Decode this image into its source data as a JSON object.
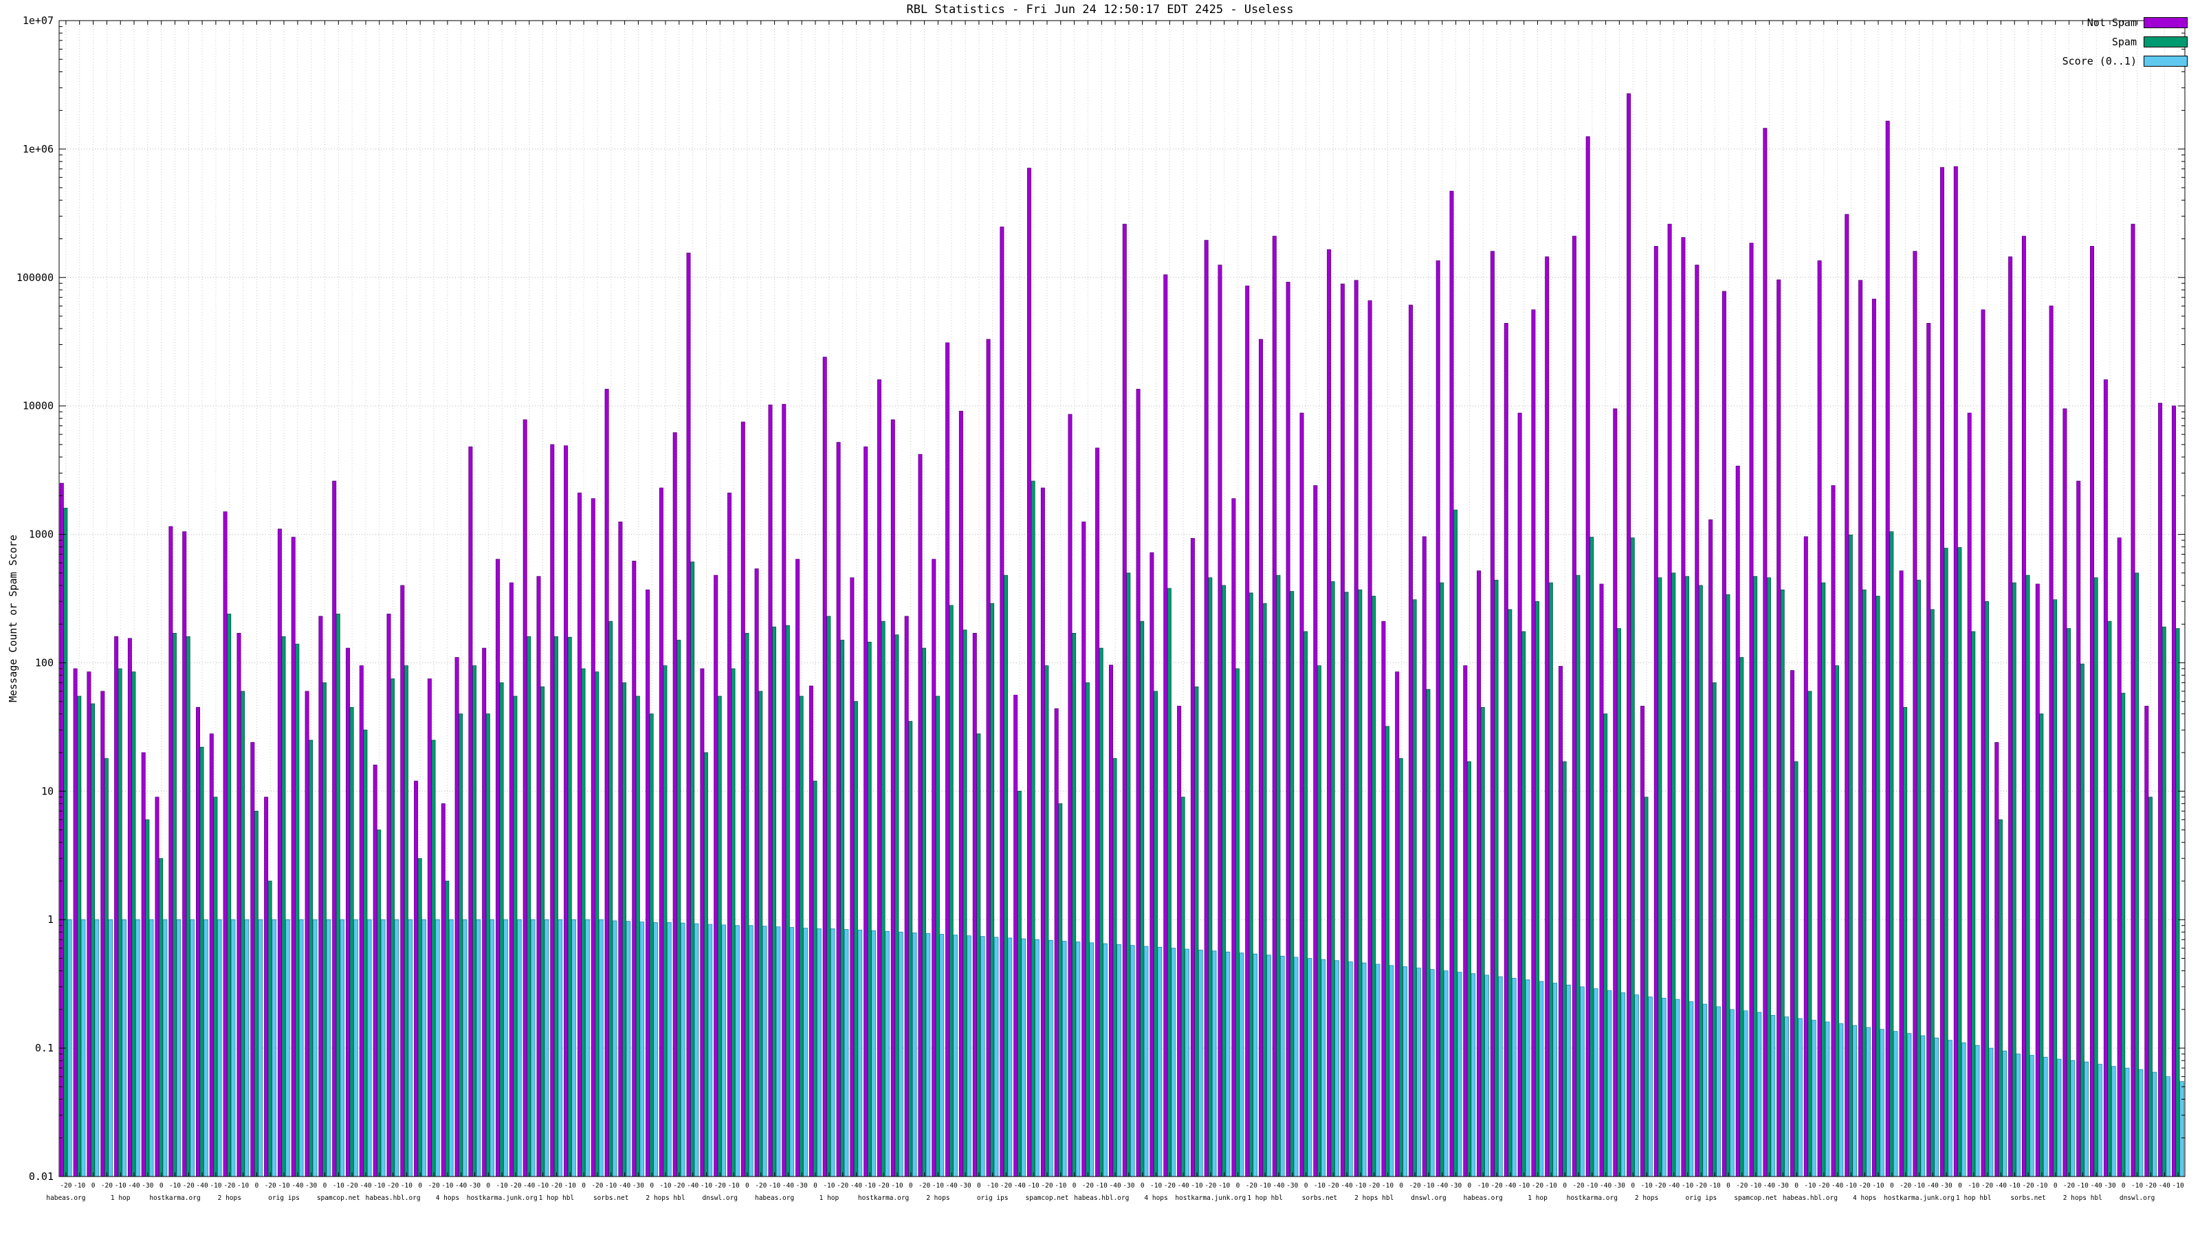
{
  "title": "RBL Statistics - Fri Jun 24 12:50:17 EDT 2425 - Useless",
  "legend": [
    {
      "label": "Not Spam",
      "color": "#a100d4"
    },
    {
      "label": "Spam",
      "color": "#009a70"
    },
    {
      "label": "Score (0..1)",
      "color": "#5fc8ee"
    }
  ],
  "y_axis": {
    "label": "Message Count or Spam Score",
    "scale": "log",
    "min": 0.01,
    "max": 10000000,
    "ticks": [
      "0.01",
      "0.1",
      "1",
      "10",
      "100",
      "1000",
      "10000",
      "100000",
      "1e+06",
      "1e+07"
    ]
  },
  "chart_data": {
    "type": "bar",
    "title": "RBL Statistics - Fri Jun 24 12:50:17 EDT 2425 - Useless",
    "xlabel": "",
    "ylabel": "Message Count or Spam Score",
    "ylim": [
      0.01,
      10000000
    ],
    "yscale": "log",
    "grid": true,
    "legend_position": "top-right",
    "categories": [
      "-20",
      "-10",
      "0",
      "-20",
      "-10",
      "-40",
      "-30",
      "0",
      "-10",
      "-20",
      "-40",
      "-10",
      "-20",
      "-10",
      "0",
      "-20",
      "-10",
      "-40",
      "-30",
      "0",
      "-10",
      "-20",
      "-40",
      "-10",
      "-20",
      "-10",
      "0",
      "-20",
      "-10",
      "-40",
      "-30",
      "0",
      "-10",
      "-20",
      "-40",
      "-10",
      "-20",
      "-10",
      "0",
      "-20",
      "-10",
      "-40",
      "-30",
      "0",
      "-10",
      "-20",
      "-40",
      "-10",
      "-20",
      "-10",
      "0",
      "-20",
      "-10",
      "-40",
      "-30",
      "0",
      "-10",
      "-20",
      "-40",
      "-10",
      "-20",
      "-10",
      "0",
      "-20",
      "-10",
      "-40",
      "-30",
      "0",
      "-10",
      "-20",
      "-40",
      "-10",
      "-20",
      "-10",
      "0",
      "-20",
      "-10",
      "-40",
      "-30",
      "0",
      "-10",
      "-20",
      "-40",
      "-10",
      "-20",
      "-10",
      "0",
      "-20",
      "-10",
      "-40",
      "-30",
      "0",
      "-10",
      "-20",
      "-40",
      "-10",
      "-20",
      "-10",
      "0",
      "-20",
      "-10",
      "-40",
      "-30",
      "0",
      "-10",
      "-20",
      "-40",
      "-10",
      "-20",
      "-10",
      "0",
      "-20",
      "-10",
      "-40",
      "-30",
      "0",
      "-10",
      "-20",
      "-40",
      "-10",
      "-20",
      "-10",
      "0",
      "-20",
      "-10",
      "-40",
      "-30",
      "0",
      "-10",
      "-20",
      "-40",
      "-10",
      "-20",
      "-10",
      "0",
      "-20",
      "-10",
      "-40",
      "-30",
      "0",
      "-10",
      "-20",
      "-40",
      "-10",
      "-20",
      "-10",
      "0",
      "-20",
      "-10",
      "-40",
      "-30",
      "0",
      "-10",
      "-20",
      "-40",
      "-10"
    ],
    "x_group_labels": [
      "habeas.org",
      "1 hop",
      "hostkarma.org",
      "2 hops",
      "orig ips",
      "spamcop.net",
      "habeas.hbl.org",
      "4 hops",
      "hostkarma.junk.org",
      "1 hop hbl",
      "sorbs.net",
      "2 hops hbl",
      "dnswl.org",
      "habeas.org",
      "1 hop",
      "hostkarma.org",
      "2 hops",
      "orig ips",
      "spamcop.net",
      "habeas.hbl.org",
      "4 hops",
      "hostkarma.junk.org",
      "1 hop hbl",
      "sorbs.net",
      "2 hops hbl",
      "dnswl.org",
      "habeas.org",
      "1 hop",
      "hostkarma.org",
      "2 hops",
      "orig ips",
      "spamcop.net",
      "habeas.hbl.org",
      "4 hops",
      "hostkarma.junk.org",
      "1 hop hbl",
      "sorbs.net",
      "2 hops hbl",
      "dnswl.org"
    ],
    "series": [
      {
        "name": "Not Spam",
        "color": "#a100d4",
        "edge": "#5c0080",
        "values": [
          2500,
          90,
          85,
          60,
          160,
          155,
          20,
          9,
          1150,
          1050,
          45,
          28,
          1500,
          170,
          24,
          9,
          1100,
          950,
          60,
          230,
          2600,
          130,
          95,
          16,
          240,
          400,
          12,
          75,
          8,
          110,
          4800,
          130,
          640,
          420,
          7800,
          470,
          5000,
          4900,
          2100,
          1900,
          13500,
          1250,
          620,
          370,
          2300,
          6200,
          155000,
          90,
          480,
          2100,
          7500,
          540,
          10200,
          10300,
          640,
          66,
          24000,
          5200,
          460,
          4800,
          16000,
          7800,
          230,
          4200,
          640,
          31000,
          9100,
          170,
          33000,
          248000,
          56,
          710000,
          2300,
          44,
          8600,
          1250,
          4700,
          96,
          260000,
          13500,
          720,
          105000,
          46,
          930,
          195000,
          125000,
          1900,
          86000,
          33000,
          210000,
          92000,
          8800,
          2400,
          165000,
          89000,
          95000,
          66000,
          210,
          85,
          61000,
          960,
          135000,
          470000,
          95,
          520,
          160000,
          44000,
          8800,
          56000,
          145000,
          94,
          210000,
          1250000,
          410,
          9500,
          2700000,
          46,
          175000,
          260000,
          205000,
          125000,
          1300,
          78000,
          3400,
          185000,
          1450000,
          96000,
          87,
          960,
          135000,
          2400,
          310000,
          95000,
          68000,
          1650000,
          520,
          160000,
          44000,
          720000,
          730000,
          8800,
          56000,
          24,
          145000,
          210000,
          410,
          60000,
          9500,
          2600,
          175000,
          16000,
          940,
          260000,
          46,
          10500,
          10000
        ]
      },
      {
        "name": "Spam",
        "color": "#009a70",
        "edge": "#00543c",
        "values": [
          1600,
          55,
          48,
          18,
          90,
          85,
          6,
          3,
          170,
          160,
          22,
          9,
          240,
          60,
          7,
          2,
          160,
          140,
          25,
          70,
          240,
          45,
          30,
          5,
          75,
          95,
          3,
          25,
          2,
          40,
          95,
          40,
          70,
          55,
          160,
          65,
          160,
          158,
          90,
          85,
          210,
          70,
          55,
          40,
          95,
          150,
          610,
          20,
          55,
          90,
          170,
          60,
          190,
          195,
          55,
          12,
          230,
          150,
          50,
          145,
          210,
          165,
          35,
          130,
          55,
          280,
          180,
          28,
          290,
          480,
          10,
          2600,
          95,
          8,
          170,
          70,
          130,
          18,
          500,
          210,
          60,
          380,
          9,
          65,
          460,
          400,
          90,
          350,
          290,
          480,
          360,
          175,
          95,
          430,
          355,
          370,
          330,
          32,
          18,
          310,
          62,
          420,
          1550,
          17,
          45,
          440,
          260,
          175,
          300,
          420,
          17,
          480,
          950,
          40,
          185,
          940,
          9,
          460,
          500,
          470,
          400,
          70,
          340,
          110,
          470,
          460,
          370,
          17,
          60,
          420,
          95,
          990,
          370,
          330,
          1050,
          45,
          440,
          260,
          780,
          790,
          175,
          300,
          6,
          420,
          480,
          40,
          310,
          185,
          98,
          460,
          210,
          58,
          500,
          9,
          190,
          185
        ]
      },
      {
        "name": "Score (0..1)",
        "color": "#5fc8ee",
        "edge": "#1f88b4",
        "values": [
          1,
          1,
          1,
          1,
          1,
          1,
          1,
          1,
          1,
          1,
          1,
          1,
          1,
          1,
          1,
          1,
          1,
          1,
          1,
          1,
          1,
          1,
          1,
          1,
          1,
          1,
          1,
          1,
          1,
          1,
          1,
          1,
          1,
          1,
          1,
          1,
          1,
          1,
          1,
          1,
          0.98,
          0.97,
          0.96,
          0.95,
          0.95,
          0.94,
          0.93,
          0.92,
          0.91,
          0.9,
          0.9,
          0.89,
          0.88,
          0.87,
          0.86,
          0.85,
          0.85,
          0.84,
          0.83,
          0.82,
          0.81,
          0.8,
          0.79,
          0.78,
          0.77,
          0.76,
          0.75,
          0.74,
          0.73,
          0.72,
          0.71,
          0.7,
          0.69,
          0.68,
          0.67,
          0.66,
          0.65,
          0.64,
          0.63,
          0.62,
          0.61,
          0.6,
          0.59,
          0.58,
          0.57,
          0.56,
          0.55,
          0.54,
          0.53,
          0.52,
          0.51,
          0.5,
          0.49,
          0.48,
          0.47,
          0.46,
          0.45,
          0.44,
          0.43,
          0.42,
          0.41,
          0.4,
          0.39,
          0.38,
          0.37,
          0.36,
          0.35,
          0.34,
          0.33,
          0.32,
          0.31,
          0.3,
          0.29,
          0.28,
          0.27,
          0.26,
          0.25,
          0.245,
          0.24,
          0.23,
          0.22,
          0.21,
          0.2,
          0.195,
          0.19,
          0.18,
          0.175,
          0.17,
          0.165,
          0.16,
          0.155,
          0.15,
          0.145,
          0.14,
          0.135,
          0.13,
          0.125,
          0.12,
          0.115,
          0.11,
          0.105,
          0.1,
          0.095,
          0.09,
          0.088,
          0.085,
          0.082,
          0.08,
          0.078,
          0.075,
          0.072,
          0.07,
          0.068,
          0.065,
          0.06,
          0.055
        ]
      }
    ]
  }
}
